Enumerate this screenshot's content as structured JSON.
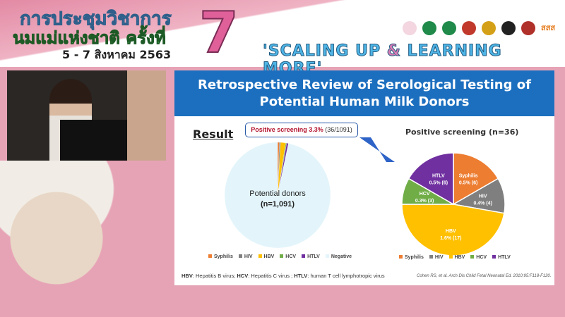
{
  "banner": {
    "title_line1": "การประชุมวิชาการ",
    "title_line2": "นมแม่แห่งชาติ ครั้งที่",
    "dates": "5 - 7 สิงหาคม 2563",
    "number": "7",
    "slogan_a": "'SCALING UP ",
    "slogan_amp": "&",
    "slogan_b": " LEARNING MORE'",
    "logo_text": "สสส"
  },
  "slide": {
    "title_line1": "Retrospective Review of Serological Testing of",
    "title_line2": "Potential Human Milk Donors",
    "result_label": "Result",
    "callout_bold": "Positive screening 3.3%",
    "callout_rest": " (36/1091)",
    "footnote": [
      {
        "b": "HBV",
        "t": ": Hepatitis B virus; "
      },
      {
        "b": "HCV",
        "t": ": Hepatitis C virus ; "
      },
      {
        "b": "HTLV",
        "t": ": human T cell lymphotropic virus"
      }
    ],
    "citation": "Cohen RS, et al. Arch Dis Child Fetal Neonatal Ed. 2010;95:F118-F120."
  },
  "chart_data": [
    {
      "type": "pie",
      "center_label_line1": "Potential donors",
      "center_label_line2": "(n=1,091)",
      "categories": [
        "Syphilis",
        "HIV",
        "HBV",
        "HCV",
        "HTLV",
        "Negative"
      ],
      "values": [
        6,
        4,
        17,
        3,
        6,
        1055
      ],
      "colors": [
        "#ed7d31",
        "#7f7f7f",
        "#ffc000",
        "#70ad47",
        "#7030a0",
        "#e3f5fb"
      ],
      "legend": "bottom"
    },
    {
      "type": "pie",
      "title": "Positive screening (n=36)",
      "categories": [
        "Syphilis",
        "HIV",
        "HBV",
        "HCV",
        "HTLV"
      ],
      "values": [
        6,
        4,
        17,
        3,
        6
      ],
      "labels": [
        "0.5% (6)",
        "0.4% (4)",
        "1.6% (17)",
        "0.3% (3)",
        "0.5% (6)"
      ],
      "colors": [
        "#ed7d31",
        "#7f7f7f",
        "#ffc000",
        "#70ad47",
        "#7030a0"
      ],
      "legend": "bottom"
    }
  ]
}
